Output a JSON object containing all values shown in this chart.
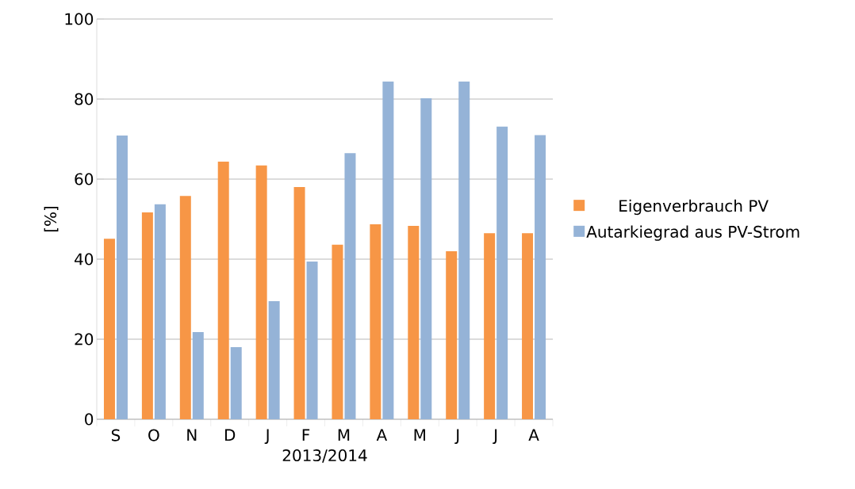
{
  "chart_data": {
    "type": "bar",
    "xlabel": "2013/2014",
    "ylabel": "[%]",
    "categories": [
      "S",
      "O",
      "N",
      "D",
      "J",
      "F",
      "M",
      "A",
      "M",
      "J",
      "J",
      "A"
    ],
    "series": [
      {
        "name": "Eigenverbrauch PV",
        "color": "#f79646",
        "values": [
          45.1,
          51.7,
          55.8,
          64.4,
          63.4,
          58,
          43.6,
          48.7,
          48.3,
          42,
          46.5,
          46.5
        ]
      },
      {
        "name": "Autarkiegrad aus PV-Strom",
        "color": "#95b3d7",
        "values": [
          70.9,
          53.7,
          21.8,
          18,
          29.5,
          39.4,
          66.5,
          84.4,
          80.2,
          84.4,
          73.1,
          71
        ]
      }
    ],
    "ylim": [
      0,
      100
    ],
    "yticks": [
      0,
      20,
      40,
      60,
      80,
      100
    ],
    "grid": "y",
    "legend": "right"
  }
}
